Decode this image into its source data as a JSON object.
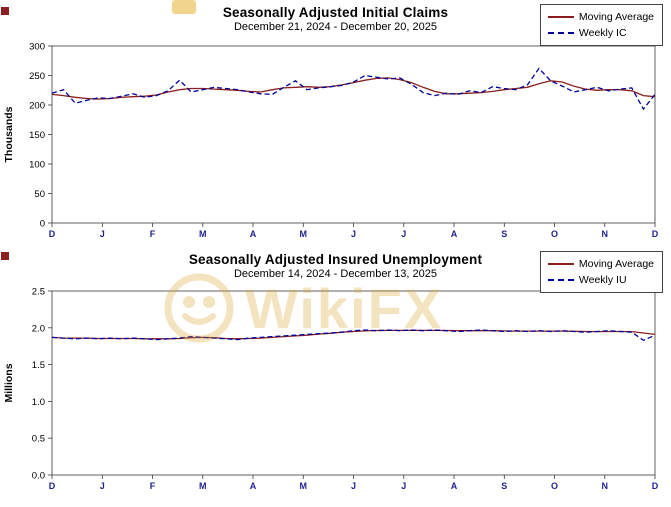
{
  "watermark": {
    "text": "WikiFX",
    "color": "#d8a62a"
  },
  "chart_data": [
    {
      "type": "line",
      "title": "Seasonally Adjusted Initial Claims",
      "subtitle": "December 21, 2024 - December 20, 2025",
      "ylabel": "Thousands",
      "ylim": [
        0,
        300
      ],
      "yticks": [
        0,
        50,
        100,
        150,
        200,
        250,
        300
      ],
      "ytick_decimals": 0,
      "xticklabels": [
        "D",
        "J",
        "F",
        "M",
        "A",
        "M",
        "J",
        "J",
        "A",
        "S",
        "O",
        "N",
        "D"
      ],
      "grid": false,
      "legend_position": "top-right",
      "series": [
        {
          "name": "Moving Average",
          "color": "#8b1f1f",
          "dash": "solid",
          "values": [
            218,
            216,
            213,
            211,
            210,
            211,
            213,
            214,
            215,
            217,
            222,
            226,
            228,
            228,
            227,
            226,
            225,
            223,
            222,
            226,
            229,
            230,
            231,
            230,
            231,
            234,
            238,
            242,
            245,
            246,
            243,
            238,
            230,
            223,
            219,
            219,
            220,
            221,
            223,
            226,
            228,
            230,
            236,
            241,
            239,
            232,
            227,
            225,
            226,
            226,
            224,
            216,
            214
          ]
        },
        {
          "name": "Weekly IC",
          "color": "#00009c",
          "dash": "dashed",
          "values": [
            220,
            226,
            203,
            208,
            212,
            211,
            215,
            219,
            213,
            216,
            224,
            242,
            222,
            226,
            230,
            228,
            226,
            222,
            219,
            218,
            230,
            241,
            226,
            229,
            231,
            233,
            239,
            250,
            247,
            244,
            246,
            235,
            221,
            216,
            220,
            218,
            224,
            221,
            231,
            228,
            226,
            234,
            262,
            241,
            232,
            222,
            226,
            230,
            224,
            227,
            229,
            193,
            218
          ]
        }
      ]
    },
    {
      "type": "line",
      "title": "Seasonally Adjusted Insured Unemployment",
      "subtitle": "December 14, 2024 - December 13, 2025",
      "ylabel": "Millions",
      "ylim": [
        0,
        2.5
      ],
      "yticks": [
        0,
        0.5,
        1.0,
        1.5,
        2.0,
        2.5
      ],
      "ytick_decimals": 1,
      "xticklabels": [
        "D",
        "J",
        "F",
        "M",
        "A",
        "M",
        "J",
        "J",
        "A",
        "S",
        "O",
        "N",
        "D"
      ],
      "grid": false,
      "legend_position": "top-right",
      "series": [
        {
          "name": "Moving Average",
          "color": "#8b1f1f",
          "dash": "solid",
          "values": [
            1.87,
            1.86,
            1.86,
            1.86,
            1.855,
            1.855,
            1.855,
            1.855,
            1.85,
            1.85,
            1.85,
            1.855,
            1.865,
            1.87,
            1.865,
            1.855,
            1.85,
            1.855,
            1.86,
            1.87,
            1.88,
            1.89,
            1.9,
            1.915,
            1.925,
            1.94,
            1.95,
            1.958,
            1.963,
            1.965,
            1.965,
            1.965,
            1.965,
            1.965,
            1.963,
            1.96,
            1.96,
            1.96,
            1.96,
            1.958,
            1.955,
            1.955,
            1.955,
            1.955,
            1.955,
            1.953,
            1.95,
            1.948,
            1.95,
            1.95,
            1.948,
            1.93,
            1.91
          ]
        },
        {
          "name": "Weekly IU",
          "color": "#00009c",
          "dash": "dashed",
          "values": [
            1.87,
            1.86,
            1.85,
            1.86,
            1.85,
            1.86,
            1.85,
            1.86,
            1.85,
            1.84,
            1.85,
            1.86,
            1.88,
            1.87,
            1.86,
            1.85,
            1.84,
            1.86,
            1.87,
            1.88,
            1.89,
            1.9,
            1.91,
            1.92,
            1.93,
            1.94,
            1.96,
            1.97,
            1.96,
            1.97,
            1.96,
            1.97,
            1.96,
            1.97,
            1.96,
            1.95,
            1.96,
            1.97,
            1.96,
            1.95,
            1.96,
            1.95,
            1.96,
            1.95,
            1.96,
            1.95,
            1.94,
            1.95,
            1.96,
            1.95,
            1.94,
            1.83,
            1.9
          ]
        }
      ]
    }
  ]
}
